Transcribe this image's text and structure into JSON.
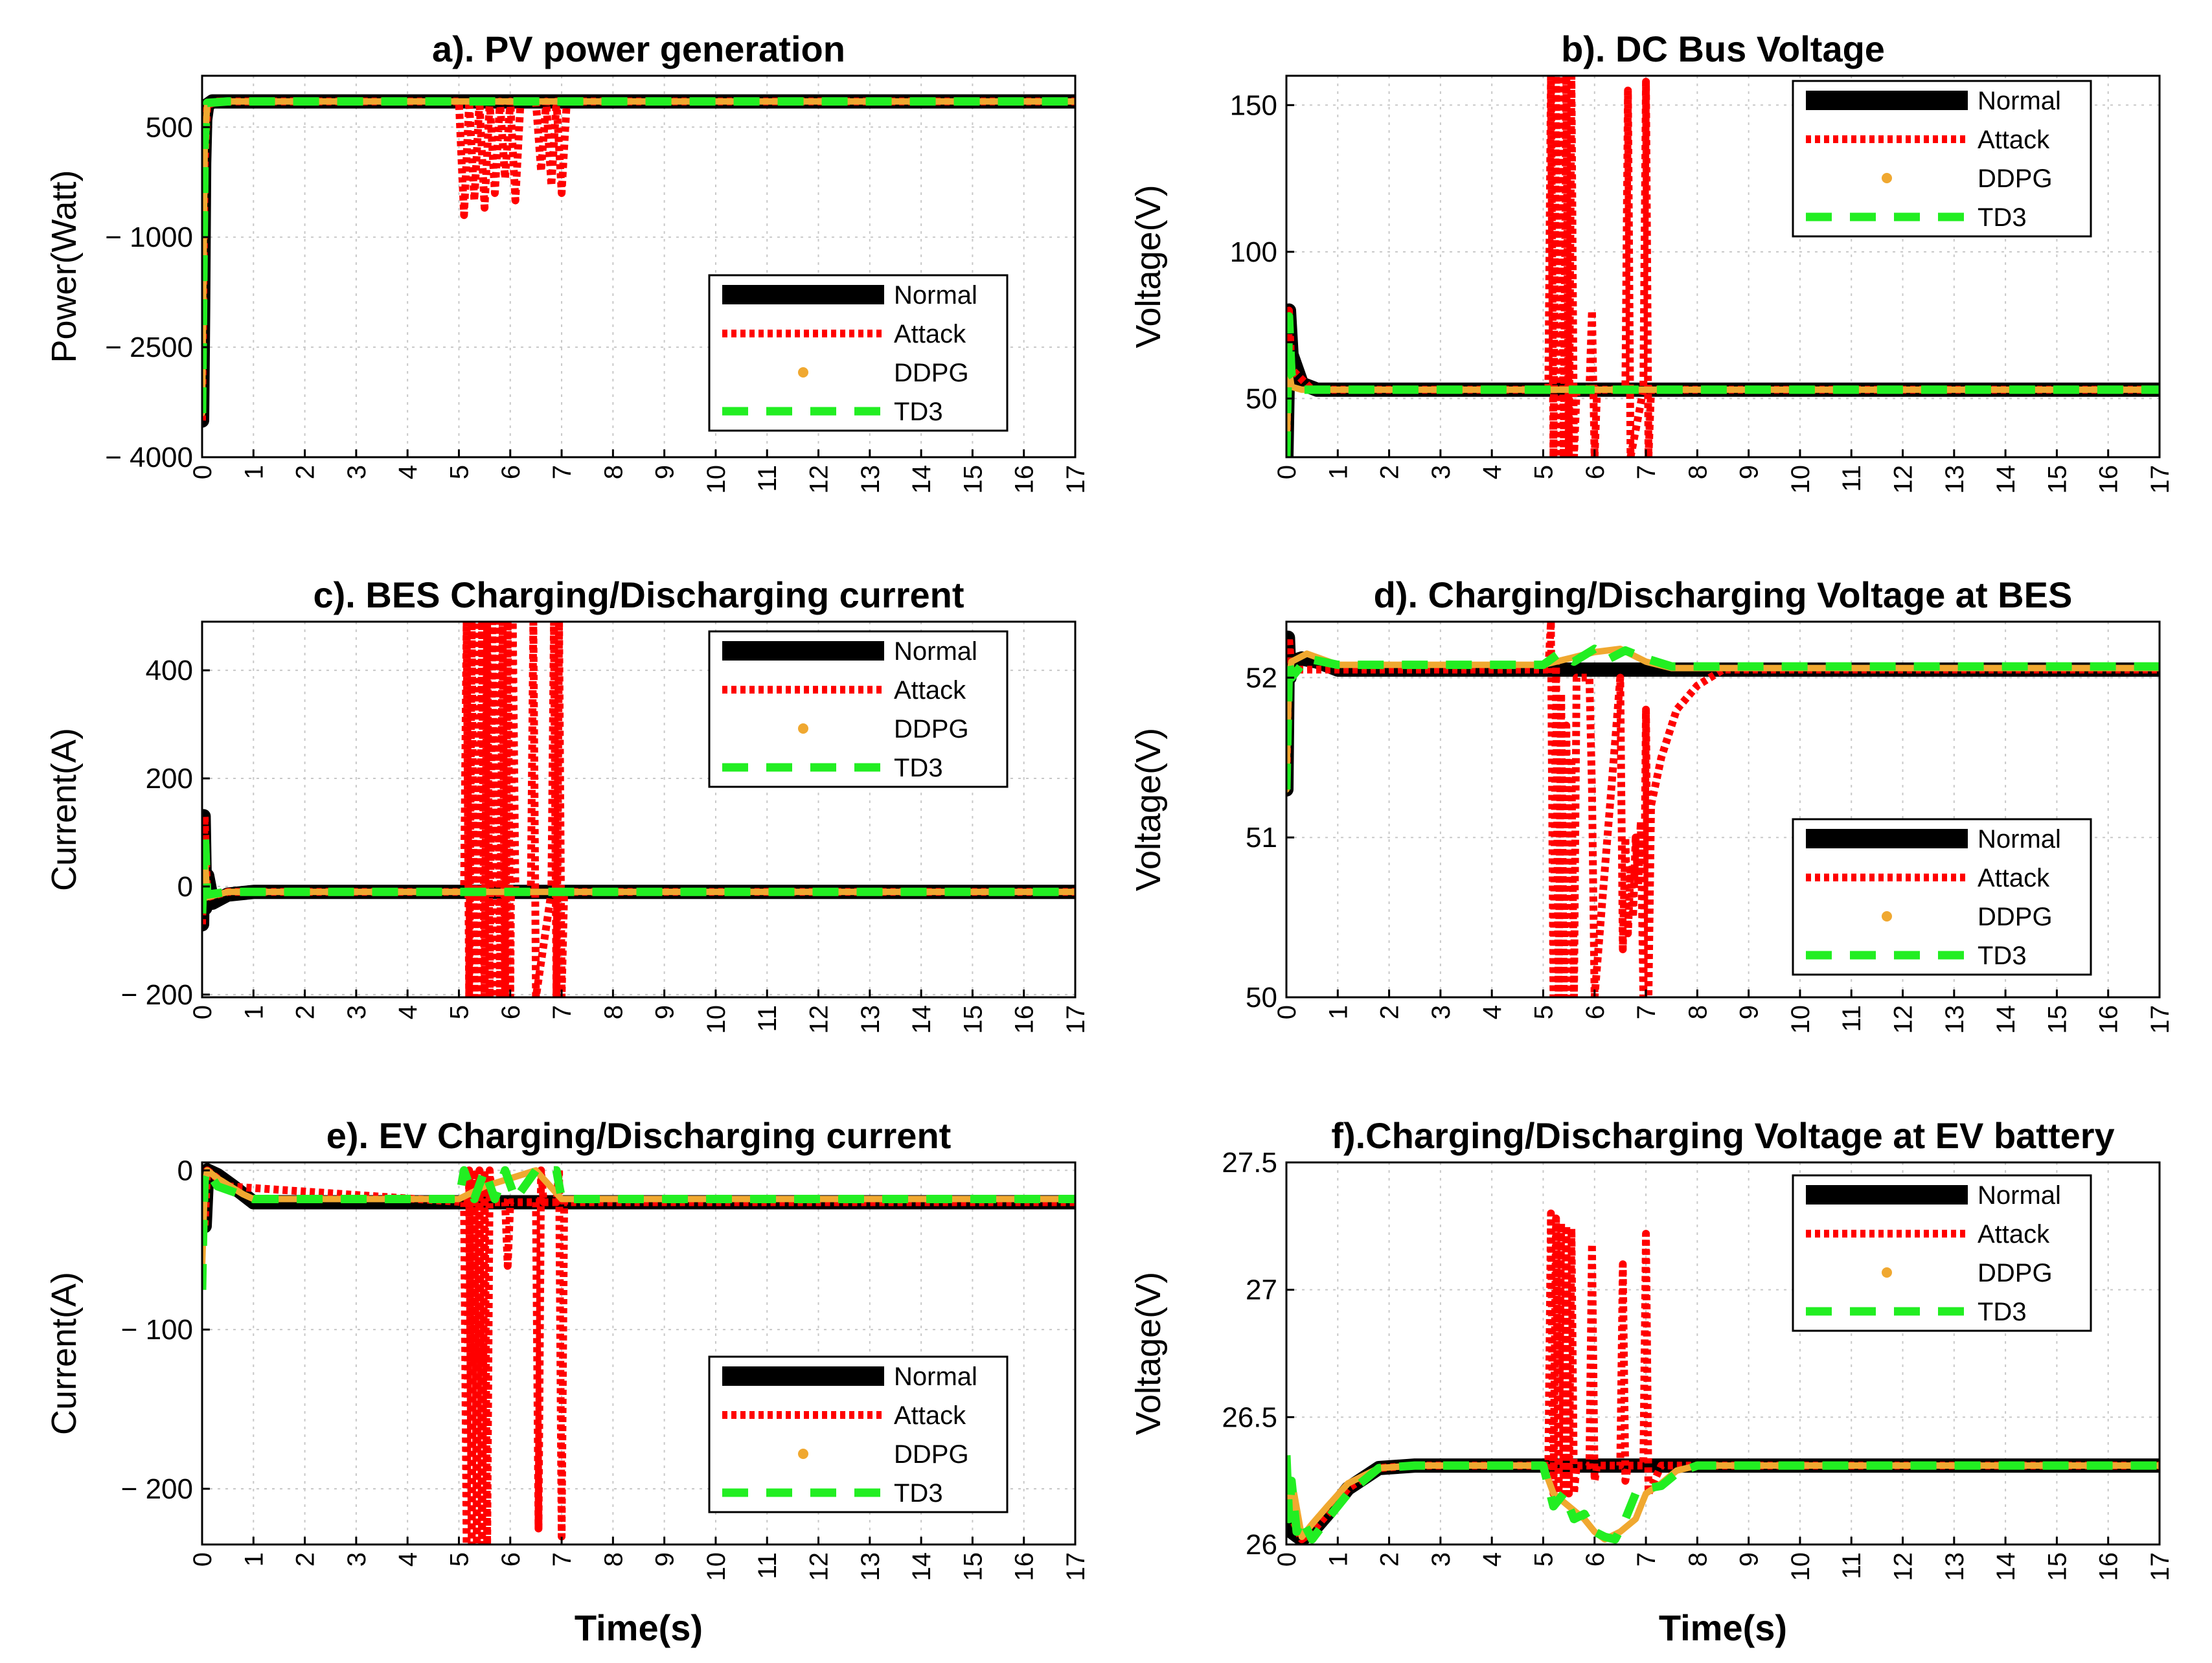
{
  "figure": {
    "colors": {
      "normal": "#000000",
      "attack": "#ff0000",
      "ddpg": "#f0a830",
      "td3": "#22ee22",
      "axis": "#000000",
      "grid": "#c8c8c8"
    },
    "legend_labels": [
      "Normal",
      "Attack",
      "DDPG",
      "TD3"
    ]
  },
  "chart_data": [
    {
      "type": "line",
      "title": "a). PV power generation",
      "xlabel": "",
      "ylabel": "Power(Watt)",
      "xlim": [
        0,
        17
      ],
      "ylim": [
        -4000,
        1200
      ],
      "xticks": [
        0,
        1,
        2,
        3,
        4,
        5,
        6,
        7,
        8,
        9,
        10,
        11,
        12,
        13,
        14,
        15,
        16,
        17
      ],
      "yticks": [
        500,
        -1000,
        -2500,
        -4000
      ],
      "ytick_labels": [
        "500",
        "− 1000",
        "− 2500",
        "− 4000"
      ],
      "legend": "lower-right",
      "grid": true,
      "series": [
        {
          "name": "Normal",
          "x": [
            0,
            0.02,
            0.04,
            0.06,
            0.1,
            0.2,
            0.5,
            1,
            17
          ],
          "y": [
            -3500,
            -2000,
            0,
            600,
            800,
            850,
            850,
            850,
            850
          ]
        },
        {
          "name": "Attack",
          "x": [
            0,
            0.05,
            0.1,
            0.3,
            5.0,
            5.1,
            5.2,
            5.3,
            5.4,
            5.5,
            5.6,
            5.7,
            5.8,
            5.9,
            6.0,
            6.1,
            6.2,
            6.5,
            6.6,
            6.7,
            6.8,
            6.9,
            7.0,
            7.1,
            17
          ],
          "y": [
            -3500,
            0,
            800,
            850,
            850,
            -700,
            850,
            -500,
            850,
            -600,
            850,
            -400,
            850,
            -200,
            850,
            -500,
            850,
            850,
            -100,
            850,
            -300,
            850,
            -400,
            850,
            850
          ]
        },
        {
          "name": "DDPG",
          "x": [
            0,
            0.05,
            0.1,
            0.5,
            17
          ],
          "y": [
            -3400,
            200,
            820,
            850,
            850
          ]
        },
        {
          "name": "TD3",
          "x": [
            0,
            0.05,
            0.1,
            0.5,
            17
          ],
          "y": [
            -3400,
            300,
            830,
            850,
            850
          ]
        }
      ]
    },
    {
      "type": "line",
      "title": "b). DC Bus Voltage",
      "xlabel": "",
      "ylabel": "Voltage(V)",
      "xlim": [
        0,
        17
      ],
      "ylim": [
        30,
        160
      ],
      "xticks": [
        0,
        1,
        2,
        3,
        4,
        5,
        6,
        7,
        8,
        9,
        10,
        11,
        12,
        13,
        14,
        15,
        16,
        17
      ],
      "yticks": [
        50,
        100,
        150
      ],
      "ytick_labels": [
        "50",
        "100",
        "150"
      ],
      "legend": "top-right",
      "grid": true,
      "series": [
        {
          "name": "Normal",
          "x": [
            0,
            0.05,
            0.1,
            0.3,
            0.6,
            1.0,
            17
          ],
          "y": [
            30,
            80,
            65,
            55,
            53,
            53,
            53
          ]
        },
        {
          "name": "Attack",
          "x": [
            0,
            0.05,
            0.1,
            0.5,
            5.1,
            5.15,
            5.2,
            5.25,
            5.3,
            5.35,
            5.4,
            5.45,
            5.5,
            5.55,
            5.6,
            5.65,
            5.9,
            5.95,
            6.0,
            6.05,
            6.6,
            6.65,
            6.7,
            6.95,
            7.0,
            7.05,
            7.1,
            17
          ],
          "y": [
            30,
            80,
            60,
            53,
            53,
            160,
            30,
            160,
            30,
            160,
            30,
            160,
            30,
            160,
            30,
            53,
            53,
            80,
            30,
            53,
            53,
            155,
            30,
            53,
            158,
            30,
            53,
            53
          ]
        },
        {
          "name": "DDPG",
          "x": [
            0,
            0.05,
            0.1,
            0.3,
            17
          ],
          "y": [
            30,
            60,
            54,
            53,
            53
          ]
        },
        {
          "name": "TD3",
          "x": [
            0,
            0.05,
            0.1,
            0.3,
            17
          ],
          "y": [
            30,
            78,
            58,
            53,
            53
          ]
        }
      ]
    },
    {
      "type": "line",
      "title": "c). BES Charging/Discharging current",
      "xlabel": "",
      "ylabel": "Current(A)",
      "xlim": [
        0,
        17
      ],
      "ylim": [
        -205,
        490
      ],
      "xticks": [
        0,
        1,
        2,
        3,
        4,
        5,
        6,
        7,
        8,
        9,
        10,
        11,
        12,
        13,
        14,
        15,
        16,
        17
      ],
      "yticks": [
        -200,
        0,
        200,
        400
      ],
      "ytick_labels": [
        "− 200",
        "0",
        "200",
        "400"
      ],
      "legend": "top-right",
      "grid": true,
      "series": [
        {
          "name": "Normal",
          "x": [
            0,
            0.03,
            0.06,
            0.1,
            0.2,
            0.5,
            1.0,
            17
          ],
          "y": [
            -70,
            130,
            -40,
            20,
            -30,
            -15,
            -10,
            -10
          ]
        },
        {
          "name": "Attack",
          "x": [
            0,
            0.05,
            0.1,
            0.5,
            5.1,
            5.15,
            5.2,
            5.25,
            5.3,
            5.35,
            5.4,
            5.45,
            5.5,
            5.55,
            5.6,
            5.65,
            5.7,
            5.75,
            5.8,
            5.85,
            5.9,
            5.95,
            6.0,
            6.05,
            6.1,
            6.4,
            6.45,
            6.5,
            6.8,
            6.85,
            6.9,
            6.95,
            7.0,
            7.05,
            17
          ],
          "y": [
            -70,
            130,
            -20,
            -10,
            -10,
            490,
            -205,
            490,
            -205,
            490,
            -205,
            490,
            -205,
            490,
            -205,
            490,
            -205,
            490,
            -205,
            490,
            -205,
            490,
            -205,
            490,
            -10,
            -10,
            490,
            -205,
            -10,
            490,
            -205,
            490,
            -205,
            -10,
            -10
          ]
        },
        {
          "name": "DDPG",
          "x": [
            0,
            0.05,
            0.1,
            0.5,
            17
          ],
          "y": [
            -40,
            60,
            -20,
            -10,
            -10
          ]
        },
        {
          "name": "TD3",
          "x": [
            0,
            0.05,
            0.1,
            0.5,
            17
          ],
          "y": [
            -50,
            100,
            -15,
            -10,
            -10
          ]
        }
      ]
    },
    {
      "type": "line",
      "title": "d). Charging/Discharging Voltage at BES",
      "xlabel": "",
      "ylabel": "Voltage(V)",
      "xlim": [
        0,
        17
      ],
      "ylim": [
        50,
        52.35
      ],
      "xticks": [
        0,
        1,
        2,
        3,
        4,
        5,
        6,
        7,
        8,
        9,
        10,
        11,
        12,
        13,
        14,
        15,
        16,
        17
      ],
      "yticks": [
        50,
        51,
        52
      ],
      "ytick_labels": [
        "50",
        "51",
        "52"
      ],
      "legend": "lower-right",
      "grid": true,
      "series": [
        {
          "name": "Normal",
          "x": [
            0,
            0.03,
            0.06,
            0.1,
            0.3,
            0.6,
            1.0,
            2.0,
            17
          ],
          "y": [
            51.3,
            52.25,
            52.0,
            52.1,
            52.12,
            52.1,
            52.05,
            52.05,
            52.05
          ]
        },
        {
          "name": "Attack",
          "x": [
            0,
            0.05,
            0.1,
            0.5,
            5.1,
            5.15,
            5.2,
            5.25,
            5.3,
            5.35,
            5.4,
            5.45,
            5.5,
            5.55,
            5.6,
            5.65,
            5.9,
            5.95,
            6.0,
            6.5,
            6.55,
            6.6,
            6.65,
            6.7,
            6.75,
            6.8,
            6.85,
            6.9,
            6.95,
            7.0,
            7.05,
            7.1,
            7.3,
            7.6,
            8.0,
            8.5,
            17
          ],
          "y": [
            51.3,
            52.25,
            52.05,
            52.05,
            52.05,
            52.35,
            50,
            52.1,
            50,
            51.9,
            50,
            51.7,
            50,
            51.5,
            50,
            52.0,
            52.0,
            51.3,
            50,
            52.0,
            50.3,
            51.0,
            50.4,
            50.8,
            50.5,
            51.0,
            50.7,
            51.1,
            50.0,
            51.8,
            50.0,
            51.2,
            51.5,
            51.8,
            51.95,
            52.05,
            52.05
          ]
        },
        {
          "name": "DDPG",
          "x": [
            0,
            0.05,
            0.1,
            0.4,
            1.0,
            5.0,
            5.5,
            6.0,
            6.5,
            7.0,
            7.5,
            17
          ],
          "y": [
            51.3,
            52.0,
            52.1,
            52.15,
            52.08,
            52.08,
            52.12,
            52.16,
            52.18,
            52.1,
            52.06,
            52.06
          ]
        },
        {
          "name": "TD3",
          "x": [
            0,
            0.05,
            0.1,
            0.4,
            1.0,
            5.0,
            5.3,
            5.6,
            6.0,
            6.3,
            6.6,
            7.0,
            7.5,
            17
          ],
          "y": [
            51.3,
            52.1,
            52.0,
            52.12,
            52.08,
            52.08,
            52.15,
            52.1,
            52.18,
            52.12,
            52.17,
            52.12,
            52.07,
            52.07
          ]
        }
      ]
    },
    {
      "type": "line",
      "title": "e). EV Charging/Discharging current",
      "xlabel": "Time(s)",
      "ylabel": "Current(A)",
      "xlim": [
        0,
        17
      ],
      "ylim": [
        -235,
        5
      ],
      "xticks": [
        0,
        1,
        2,
        3,
        4,
        5,
        6,
        7,
        8,
        9,
        10,
        11,
        12,
        13,
        14,
        15,
        16,
        17
      ],
      "yticks": [
        -200,
        -100,
        0
      ],
      "ytick_labels": [
        "− 200",
        "− 100",
        "0"
      ],
      "legend": "lower-right",
      "grid": true,
      "series": [
        {
          "name": "Normal",
          "x": [
            0,
            0.05,
            0.1,
            0.3,
            0.6,
            1.0,
            17
          ],
          "y": [
            -30,
            -35,
            0,
            -3,
            -10,
            -20,
            -20
          ]
        },
        {
          "name": "Attack",
          "x": [
            0,
            0.05,
            0.1,
            0.5,
            5.1,
            5.15,
            5.2,
            5.25,
            5.3,
            5.35,
            5.4,
            5.45,
            5.5,
            5.55,
            5.6,
            5.65,
            5.9,
            5.95,
            6.0,
            6.5,
            6.55,
            6.6,
            6.65,
            6.9,
            6.95,
            7.0,
            7.05,
            17
          ],
          "y": [
            -30,
            -35,
            0,
            -10,
            -20,
            -235,
            0,
            -235,
            0,
            -235,
            0,
            -235,
            0,
            -235,
            0,
            -20,
            -20,
            -60,
            -20,
            -20,
            -225,
            0,
            -20,
            -20,
            0,
            -230,
            -20,
            -20
          ]
        },
        {
          "name": "DDPG",
          "x": [
            0,
            0.05,
            0.1,
            0.3,
            0.8,
            1.0,
            5.0,
            5.5,
            6.0,
            6.5,
            7.0,
            17
          ],
          "y": [
            -60,
            -10,
            0,
            -5,
            -15,
            -18,
            -18,
            -10,
            -5,
            0,
            -18,
            -18
          ]
        },
        {
          "name": "TD3",
          "x": [
            0,
            0.02,
            0.05,
            0.1,
            0.3,
            1.0,
            5.0,
            5.1,
            5.3,
            5.5,
            5.7,
            5.9,
            6.1,
            6.5,
            6.9,
            7.0,
            7.1,
            17
          ],
          "y": [
            -75,
            -40,
            -5,
            0,
            -10,
            -18,
            -18,
            0,
            -18,
            0,
            -18,
            0,
            -18,
            0,
            0,
            -18,
            -18,
            -18
          ]
        }
      ]
    },
    {
      "type": "line",
      "title": "f).Charging/Discharging Voltage at EV battery",
      "xlabel": "Time(s)",
      "ylabel": "Voltage(V)",
      "xlim": [
        0,
        17
      ],
      "ylim": [
        26,
        27.5
      ],
      "xticks": [
        0,
        1,
        2,
        3,
        4,
        5,
        6,
        7,
        8,
        9,
        10,
        11,
        12,
        13,
        14,
        15,
        16,
        17
      ],
      "yticks": [
        26,
        26.5,
        27,
        27.5
      ],
      "ytick_labels": [
        "26",
        "26.5",
        "27",
        "27.5"
      ],
      "legend": "top-right",
      "grid": true,
      "series": [
        {
          "name": "Normal",
          "x": [
            0,
            0.1,
            0.3,
            0.5,
            0.8,
            1.2,
            1.8,
            2.5,
            17
          ],
          "y": [
            26.15,
            26.05,
            26.02,
            26.05,
            26.12,
            26.22,
            26.3,
            26.31,
            26.31
          ]
        },
        {
          "name": "Attack",
          "x": [
            0,
            0.3,
            0.5,
            0.8,
            1.2,
            1.8,
            2.5,
            5.1,
            5.15,
            5.2,
            5.25,
            5.3,
            5.35,
            5.4,
            5.45,
            5.5,
            5.55,
            5.6,
            5.65,
            5.9,
            5.95,
            6.0,
            6.05,
            6.5,
            6.55,
            6.6,
            6.65,
            6.95,
            7.0,
            7.05,
            7.3,
            17
          ],
          "y": [
            26.15,
            26.02,
            26.05,
            26.12,
            26.22,
            26.3,
            26.31,
            26.31,
            27.3,
            26.2,
            27.28,
            26.2,
            27.26,
            26.2,
            27.25,
            26.2,
            27.24,
            26.2,
            26.31,
            26.31,
            27.18,
            26.25,
            26.31,
            26.31,
            27.1,
            26.25,
            26.31,
            26.31,
            27.22,
            26.2,
            26.31,
            26.31
          ]
        },
        {
          "name": "DDPG",
          "x": [
            0,
            0.05,
            0.15,
            0.3,
            0.5,
            0.8,
            1.2,
            1.8,
            2.5,
            5.0,
            5.2,
            5.5,
            5.8,
            6.0,
            6.2,
            6.5,
            6.8,
            7.0,
            7.3,
            7.6,
            8.0,
            17
          ],
          "y": [
            26.3,
            26.1,
            26.2,
            26.03,
            26.08,
            26.15,
            26.24,
            26.3,
            26.31,
            26.31,
            26.2,
            26.15,
            26.1,
            26.05,
            26.02,
            26.05,
            26.1,
            26.2,
            26.24,
            26.29,
            26.31,
            26.31
          ]
        },
        {
          "name": "TD3",
          "x": [
            0,
            0.05,
            0.1,
            0.2,
            0.3,
            0.5,
            0.8,
            1.2,
            1.8,
            2.5,
            5.0,
            5.2,
            5.4,
            5.6,
            5.8,
            6.0,
            6.2,
            6.4,
            6.6,
            6.8,
            7.0,
            7.3,
            7.6,
            8.0,
            17
          ],
          "y": [
            26.35,
            26.1,
            26.25,
            26.05,
            26.1,
            26.02,
            26.1,
            26.2,
            26.3,
            26.31,
            26.31,
            26.15,
            26.2,
            26.1,
            26.12,
            26.05,
            26.03,
            26.02,
            26.1,
            26.2,
            26.22,
            26.23,
            26.28,
            26.31,
            26.31
          ]
        }
      ]
    }
  ]
}
